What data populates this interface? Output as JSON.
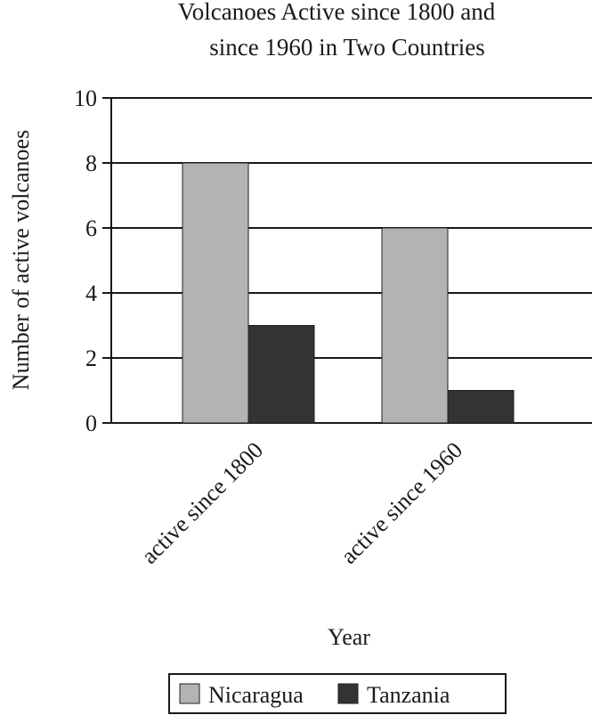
{
  "chart_data": {
    "type": "bar",
    "title": [
      "Volcanoes Active since 1800 and",
      "since 1960 in Two Countries"
    ],
    "x_label": "Year",
    "y_label": "Number of active volcanoes",
    "categories": [
      "active since 1800",
      "active since 1960"
    ],
    "series": [
      {
        "name": "Nicaragua",
        "color": "#b3b3b3",
        "values": [
          8,
          6
        ]
      },
      {
        "name": "Tanzania",
        "color": "#333333",
        "values": [
          3,
          1
        ]
      }
    ],
    "ylim": [
      0,
      10
    ],
    "yticks": [
      0,
      2,
      4,
      6,
      8,
      10
    ],
    "grid": true,
    "legend": "bottom"
  }
}
